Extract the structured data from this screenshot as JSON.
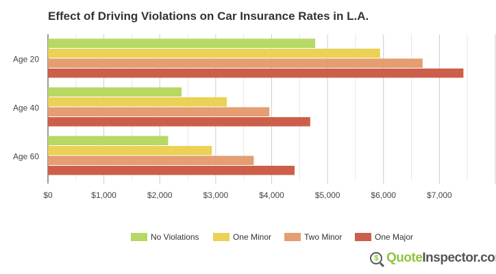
{
  "chart_data": {
    "type": "bar",
    "orientation": "horizontal",
    "title": "Effect of Driving Violations on Car Insurance Rates in L.A.",
    "categories": [
      "Age 20",
      "Age 40",
      "Age 60"
    ],
    "series": [
      {
        "name": "No Violations",
        "color": "#b5d964",
        "values": [
          4780,
          2390,
          2150
        ]
      },
      {
        "name": "One Minor",
        "color": "#ebd155",
        "values": [
          5940,
          3200,
          2930
        ]
      },
      {
        "name": "Two Minor",
        "color": "#e49e72",
        "values": [
          6700,
          3960,
          3680
        ]
      },
      {
        "name": "One Major",
        "color": "#cc5f4b",
        "values": [
          7430,
          4690,
          4410
        ]
      }
    ],
    "xlim": [
      0,
      8000
    ],
    "xticks": [
      "$0",
      "$1,000",
      "$2,000",
      "$3,000",
      "$4,000",
      "$5,000",
      "$6,000",
      "$7,000"
    ],
    "legend_position": "bottom",
    "grid": true
  },
  "logo": {
    "part1": "Quote",
    "part2": "Inspector.com",
    "symbol": "$"
  }
}
